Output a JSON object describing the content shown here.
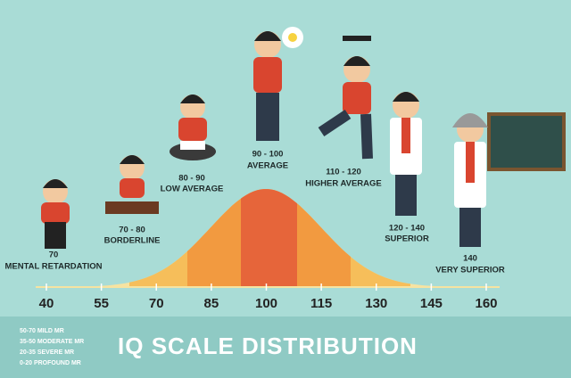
{
  "groups": [
    {
      "range": "70",
      "label": "MENTAL RETARDATION"
    },
    {
      "range": "70 - 80",
      "label": "BORDERLINE"
    },
    {
      "range": "80 - 90",
      "label": "LOW AVERAGE"
    },
    {
      "range": "90 - 100",
      "label": "AVERAGE"
    },
    {
      "range": "110 - 120",
      "label": "HIGHER AVERAGE"
    },
    {
      "range": "120 - 140",
      "label": "SUPERIOR"
    },
    {
      "range": "140",
      "label": "VERY SUPERIOR"
    }
  ],
  "axis": {
    "ticks": [
      40,
      55,
      70,
      85,
      100,
      115,
      130,
      145,
      160
    ]
  },
  "legend": [
    "50-70 MILD MR",
    "35-50 MODERATE MR",
    "20-35 SEVERE MR",
    "0-20 PROFOUND MR"
  ],
  "title": "IQ SCALE DISTRIBUTION"
}
